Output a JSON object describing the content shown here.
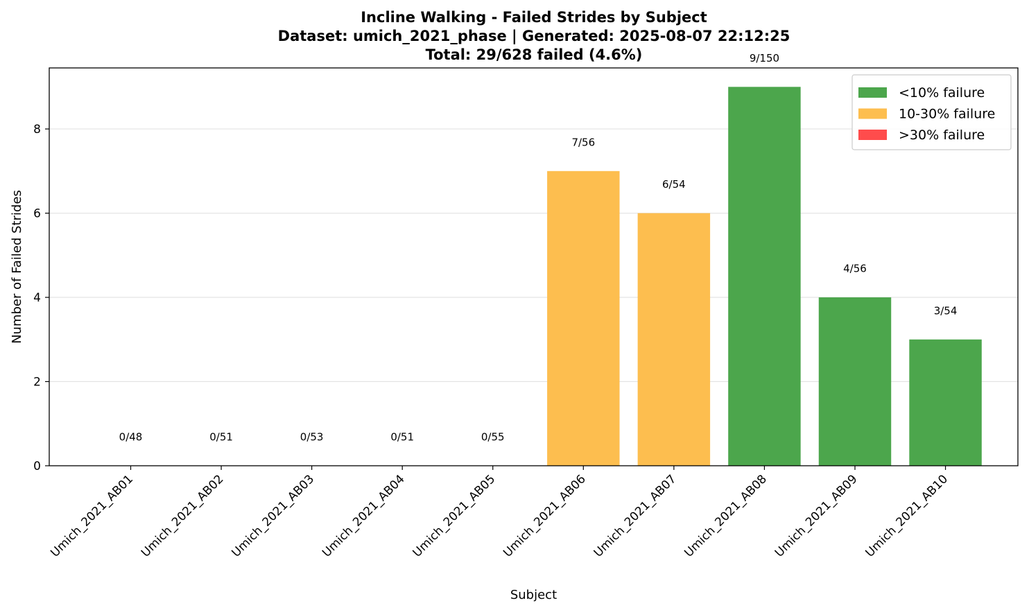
{
  "chart_data": {
    "type": "bar",
    "title_lines": [
      "Incline Walking - Failed Strides by Subject",
      "Dataset: umich_2021_phase | Generated: 2025-08-07 22:12:25",
      "Total: 29/628 failed (4.6%)"
    ],
    "xlabel": "Subject",
    "ylabel": "Number of Failed Strides",
    "ylim": [
      0,
      9.45
    ],
    "yticks": [
      0,
      2,
      4,
      6,
      8
    ],
    "grid": "y",
    "categories": [
      "Umich_2021_AB01",
      "Umich_2021_AB02",
      "Umich_2021_AB03",
      "Umich_2021_AB04",
      "Umich_2021_AB05",
      "Umich_2021_AB06",
      "Umich_2021_AB07",
      "Umich_2021_AB08",
      "Umich_2021_AB09",
      "Umich_2021_AB10"
    ],
    "values": [
      0,
      0,
      0,
      0,
      0,
      7,
      6,
      9,
      4,
      3
    ],
    "totals": [
      48,
      51,
      53,
      51,
      55,
      56,
      54,
      150,
      56,
      54
    ],
    "bar_labels": [
      "0/48",
      "0/51",
      "0/53",
      "0/51",
      "0/55",
      "7/56",
      "6/54",
      "9/150",
      "4/56",
      "3/54"
    ],
    "bar_colors": [
      "#4ca64c",
      "#4ca64c",
      "#4ca64c",
      "#4ca64c",
      "#4ca64c",
      "#fdbe4f",
      "#fdbe4f",
      "#4ca64c",
      "#4ca64c",
      "#4ca64c"
    ],
    "legend_position": "top-right",
    "legend": [
      {
        "label": "<10% failure",
        "color": "#4ca64c"
      },
      {
        "label": "10-30% failure",
        "color": "#fdbe4f"
      },
      {
        "label": ">30% failure",
        "color": "#ff4c4c"
      }
    ]
  }
}
